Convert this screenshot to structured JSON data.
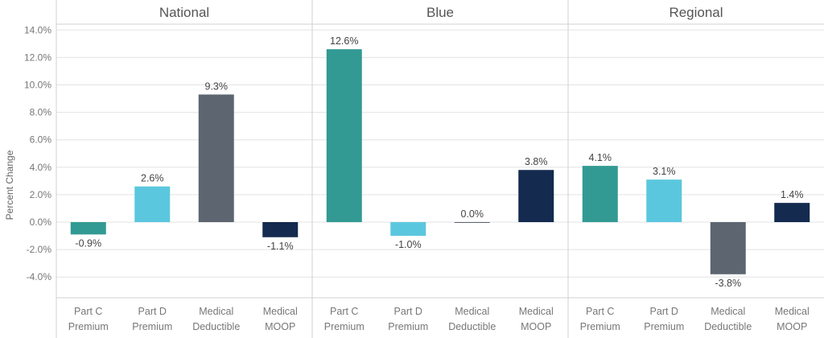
{
  "chart_data": {
    "type": "bar",
    "ylabel": "Percent Change",
    "ylim": [
      -5.5,
      15.0
    ],
    "yticks": [
      14,
      12,
      10,
      8,
      6,
      4,
      2,
      0,
      -2,
      -4
    ],
    "ytick_labels": [
      "14.0%",
      "12.0%",
      "10.0%",
      "8.0%",
      "6.0%",
      "4.0%",
      "2.0%",
      "0.0%",
      "-2.0%",
      "-4.0%"
    ],
    "grid": "horizontal",
    "categories": [
      "Part C Premium",
      "Part D Premium",
      "Medical Deductible",
      "Medical MOOP"
    ],
    "category_lines": [
      [
        "Part C",
        "Premium"
      ],
      [
        "Part D",
        "Premium"
      ],
      [
        "Medical",
        "Deductible"
      ],
      [
        "Medical",
        "MOOP"
      ]
    ],
    "category_colors": [
      "#329a93",
      "#5bc7de",
      "#5d6670",
      "#142a4f"
    ],
    "panels": [
      {
        "name": "National",
        "values": [
          -0.9,
          2.6,
          9.3,
          -1.1
        ],
        "labels": [
          "-0.9%",
          "2.6%",
          "9.3%",
          "-1.1%"
        ]
      },
      {
        "name": "Blue",
        "values": [
          12.6,
          -1.0,
          0.0,
          3.8
        ],
        "labels": [
          "12.6%",
          "-1.0%",
          "0.0%",
          "3.8%"
        ]
      },
      {
        "name": "Regional",
        "values": [
          4.1,
          3.1,
          -3.8,
          1.4
        ],
        "labels": [
          "4.1%",
          "3.1%",
          "-3.8%",
          "1.4%"
        ]
      }
    ]
  }
}
